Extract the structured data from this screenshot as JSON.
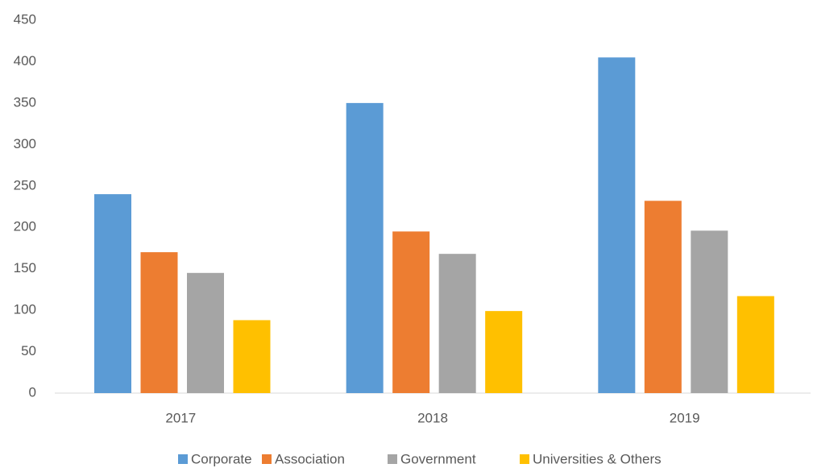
{
  "chart_data": {
    "type": "bar",
    "categories": [
      "2017",
      "2018",
      "2019"
    ],
    "series": [
      {
        "name": "Corporate",
        "color": "#5b9bd5",
        "values": [
          240,
          350,
          405
        ]
      },
      {
        "name": "Association",
        "color": "#ed7d31",
        "values": [
          170,
          195,
          232
        ]
      },
      {
        "name": "Government",
        "color": "#a5a5a5",
        "values": [
          145,
          168,
          196
        ]
      },
      {
        "name": "Universities & Others",
        "color": "#ffc000",
        "values": [
          88,
          99,
          117
        ]
      }
    ],
    "ylim": [
      0,
      450
    ],
    "yticks": [
      0,
      50,
      100,
      150,
      200,
      250,
      300,
      350,
      400,
      450
    ],
    "grid": false,
    "legend": "bottom"
  }
}
